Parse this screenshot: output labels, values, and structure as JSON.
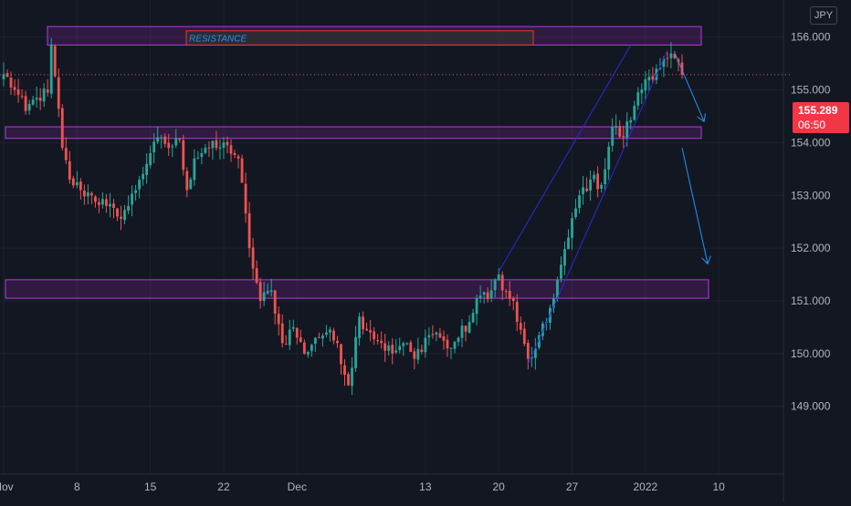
{
  "currency": "JPY",
  "last_price": "155.289",
  "countdown": "06:50",
  "colors": {
    "background": "#131722",
    "grid": "#1e222d",
    "up": "#26a69a",
    "down": "#ef5350",
    "zone_fill": "#9c27b0",
    "zone_border": "#b23de0",
    "resistance_border": "#e53935",
    "channel": "#2b2bd6",
    "arrow": "#2196f3",
    "price_tag": "#f23645",
    "axis_text": "#b2b5be"
  },
  "chart_data": {
    "type": "candlestick",
    "title": "",
    "xlabel": "",
    "ylabel": "",
    "ylim": [
      148.2,
      156.6
    ],
    "x_tick_labels": [
      "Nov",
      "8",
      "15",
      "22",
      "Dec",
      "13",
      "20",
      "27",
      "2022",
      "10"
    ],
    "y_tick_labels": [
      "149.000",
      "150.000",
      "151.000",
      "152.000",
      "153.000",
      "154.000",
      "155.000",
      "156.000"
    ],
    "y_ticks": [
      149,
      150,
      151,
      152,
      153,
      154,
      155,
      156
    ],
    "close_anchors": [
      [
        0,
        155.3
      ],
      [
        3,
        155.0
      ],
      [
        6,
        154.6
      ],
      [
        9,
        154.85
      ],
      [
        12,
        154.95
      ],
      [
        13,
        155.85
      ],
      [
        16,
        153.9
      ],
      [
        18,
        153.3
      ],
      [
        21,
        153.1
      ],
      [
        24,
        153.0
      ],
      [
        28,
        152.8
      ],
      [
        31,
        152.6
      ],
      [
        34,
        152.8
      ],
      [
        37,
        153.3
      ],
      [
        40,
        153.8
      ],
      [
        43,
        154.1
      ],
      [
        45,
        153.9
      ],
      [
        48,
        154.05
      ],
      [
        50,
        153.1
      ],
      [
        52,
        153.7
      ],
      [
        55,
        153.9
      ],
      [
        58,
        153.9
      ],
      [
        61,
        153.95
      ],
      [
        64,
        153.7
      ],
      [
        67,
        152.0
      ],
      [
        70,
        151.0
      ],
      [
        73,
        151.2
      ],
      [
        76,
        150.2
      ],
      [
        79,
        150.5
      ],
      [
        82,
        150.0
      ],
      [
        85,
        150.3
      ],
      [
        88,
        150.4
      ],
      [
        91,
        150.2
      ],
      [
        94,
        149.4
      ],
      [
        97,
        150.7
      ],
      [
        100,
        150.4
      ],
      [
        103,
        150.2
      ],
      [
        106,
        150.0
      ],
      [
        109,
        150.2
      ],
      [
        112,
        149.9
      ],
      [
        115,
        150.3
      ],
      [
        118,
        150.4
      ],
      [
        121,
        150.1
      ],
      [
        124,
        150.3
      ],
      [
        127,
        150.6
      ],
      [
        130,
        151.1
      ],
      [
        133,
        151.2
      ],
      [
        135,
        151.5
      ],
      [
        136,
        151.2
      ],
      [
        139,
        151.0
      ],
      [
        140,
        150.6
      ],
      [
        143,
        149.9
      ],
      [
        145,
        150.1
      ],
      [
        148,
        150.6
      ],
      [
        151,
        151.4
      ],
      [
        154,
        152.2
      ],
      [
        157,
        153.0
      ],
      [
        160,
        153.3
      ],
      [
        163,
        153.2
      ],
      [
        166,
        154.3
      ],
      [
        169,
        154.1
      ],
      [
        172,
        154.7
      ],
      [
        175,
        155.2
      ],
      [
        178,
        155.4
      ],
      [
        181,
        155.6
      ],
      [
        183,
        155.6
      ],
      [
        185,
        155.289
      ]
    ],
    "annotations": [
      {
        "type": "zone",
        "label": "",
        "from": 155.85,
        "to": 156.2
      },
      {
        "type": "zone",
        "label": "",
        "from": 154.08,
        "to": 154.3
      },
      {
        "type": "zone",
        "label": "",
        "from": 151.05,
        "to": 151.4
      },
      {
        "type": "label_box",
        "label": "RESISTANCE",
        "from": 155.85,
        "to": 156.12
      },
      {
        "type": "channel",
        "upper": [
          [
            135,
            151.55
          ],
          [
            171,
            155.85
          ]
        ],
        "lower": [
          [
            143,
            149.8
          ],
          [
            181,
            155.75
          ]
        ]
      },
      {
        "type": "arrow",
        "from": [
          183,
          155.7
        ],
        "to": [
          191,
          154.4
        ]
      },
      {
        "type": "arrow",
        "from": [
          185,
          153.9
        ],
        "to": [
          192,
          151.7
        ]
      }
    ]
  }
}
